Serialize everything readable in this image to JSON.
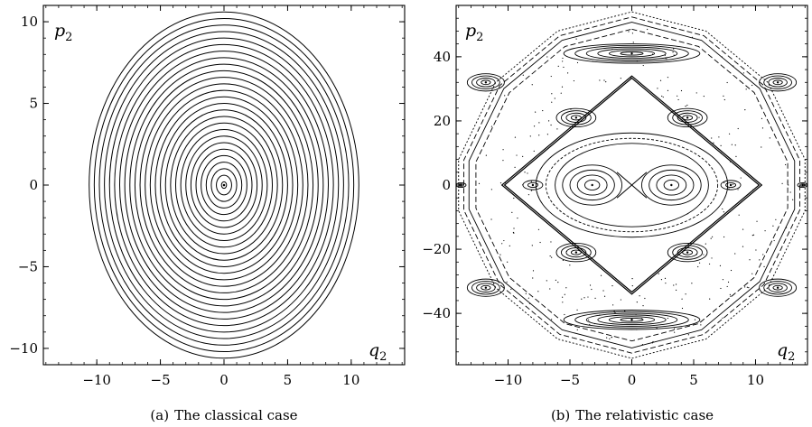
{
  "chart_data": [
    {
      "type": "line",
      "panel_label": "(a)",
      "caption": "The classical case",
      "xlabel_var": "q",
      "xlabel_sub": "2",
      "ylabel_var": "p",
      "ylabel_sub": "2",
      "xlim": [
        -14.2,
        14.2
      ],
      "ylim": [
        -11,
        11
      ],
      "xticks": [
        -10,
        -5,
        0,
        5,
        10
      ],
      "yticks": [
        -10,
        -5,
        0,
        5,
        10
      ],
      "curves": "concentric circles centered at (0,0)",
      "circle_radii": [
        0.2,
        0.6,
        1.0,
        1.4,
        1.8,
        2.2,
        2.6,
        3.0,
        3.4,
        3.8,
        4.2,
        4.6,
        5.0,
        5.4,
        5.8,
        6.2,
        6.6,
        7.0,
        7.4,
        7.8,
        8.2,
        8.6,
        9.0,
        9.4,
        9.8,
        10.2,
        10.6
      ],
      "grid": false,
      "color": "#000000"
    },
    {
      "type": "scatter",
      "panel_label": "(b)",
      "caption": "The relativistic case",
      "xlabel_var": "q",
      "xlabel_sub": "2",
      "ylabel_var": "p",
      "ylabel_sub": "2",
      "xlim": [
        -14.2,
        14.2
      ],
      "ylim": [
        -56,
        56
      ],
      "xticks": [
        -10,
        -5,
        0,
        5,
        10
      ],
      "yticks": [
        -40,
        -20,
        0,
        20,
        40
      ],
      "outer_boundary": [
        [
          0,
          54
        ],
        [
          6,
          48
        ],
        [
          11,
          32
        ],
        [
          14,
          8
        ],
        [
          14,
          -8
        ],
        [
          11,
          -32
        ],
        [
          6,
          -48
        ],
        [
          0,
          -54
        ],
        [
          -6,
          -48
        ],
        [
          -11,
          -32
        ],
        [
          -14,
          -8
        ],
        [
          -14,
          8
        ],
        [
          -11,
          32
        ],
        [
          -6,
          48
        ]
      ],
      "separatrix": [
        [
          0,
          34
        ],
        [
          10.5,
          0
        ],
        [
          0,
          -34
        ],
        [
          -10.5,
          0
        ]
      ],
      "island_centers": [
        [
          -3.2,
          0
        ],
        [
          3.2,
          0
        ],
        [
          0,
          41
        ],
        [
          0,
          -42
        ],
        [
          -4.5,
          21
        ],
        [
          4.5,
          21
        ],
        [
          -4.5,
          -21
        ],
        [
          4.5,
          -21
        ],
        [
          -11.8,
          32
        ],
        [
          11.8,
          32
        ],
        [
          -11.8,
          -32
        ],
        [
          11.8,
          -32
        ],
        [
          -8,
          0
        ],
        [
          8,
          0
        ],
        [
          -13.8,
          0
        ],
        [
          13.8,
          0
        ]
      ],
      "island_max_radii": [
        2.4,
        2.4,
        5.5,
        5.5,
        1.6,
        1.6,
        1.6,
        1.6,
        1.5,
        1.5,
        1.5,
        1.5,
        0.8,
        0.8,
        0.4,
        0.4
      ],
      "grid": false,
      "color": "#000000"
    }
  ]
}
